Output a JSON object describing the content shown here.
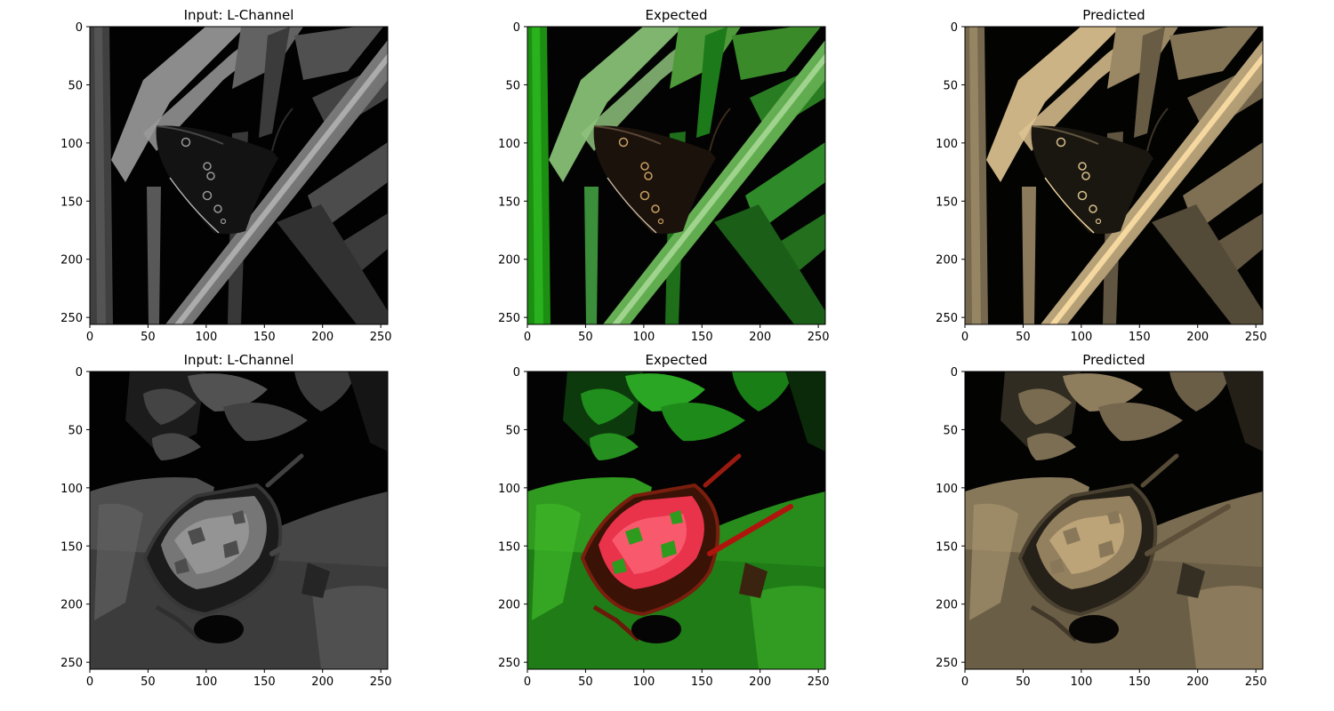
{
  "figure": {
    "panels": [
      {
        "title": "Input: L-Channel",
        "kind": "gray",
        "scene": "butterfly"
      },
      {
        "title": "Expected",
        "kind": "green",
        "scene": "butterfly"
      },
      {
        "title": "Predicted",
        "kind": "sepia",
        "scene": "butterfly"
      },
      {
        "title": "Input: L-Channel",
        "kind": "gray",
        "scene": "wheelbarrow"
      },
      {
        "title": "Expected",
        "kind": "green",
        "scene": "wheelbarrow"
      },
      {
        "title": "Predicted",
        "kind": "sepia",
        "scene": "wheelbarrow"
      }
    ],
    "x_ticks": [
      "0",
      "50",
      "100",
      "150",
      "200",
      "250"
    ],
    "y_ticks": [
      "0",
      "50",
      "100",
      "150",
      "200",
      "250"
    ],
    "axis_range": [
      0,
      256
    ],
    "colors": {
      "background": "#ffffff",
      "axis": "#000000",
      "gray_leaf": "#bdbdbd",
      "green_leaf": "#3fae2c",
      "sepia_leaf": "#b8a878",
      "red_flowers": "#e8334a"
    }
  }
}
